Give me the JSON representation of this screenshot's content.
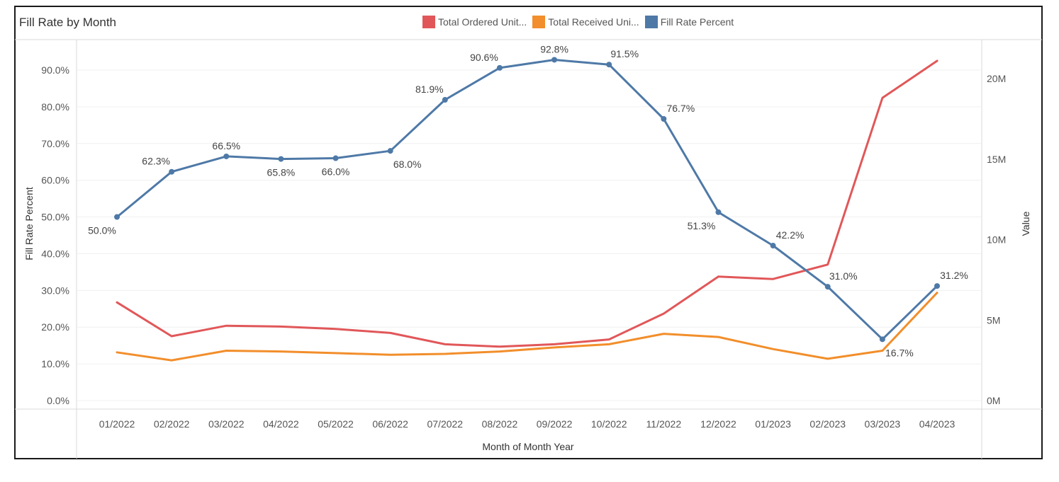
{
  "title": "Fill Rate by Month",
  "legend": [
    {
      "label": "Total Ordered Unit...",
      "color": "#e15759"
    },
    {
      "label": "Total Received Uni...",
      "color": "#f28e2b"
    },
    {
      "label": "Fill Rate Percent",
      "color": "#4e79a7"
    }
  ],
  "chart_data": {
    "type": "line",
    "title": "Fill Rate by Month",
    "xlabel": "Month of Month Year",
    "ylabel_left": "Fill Rate Percent",
    "ylabel_right": "Value",
    "categories": [
      "01/2022",
      "02/2022",
      "03/2022",
      "04/2022",
      "05/2022",
      "06/2022",
      "07/2022",
      "08/2022",
      "09/2022",
      "10/2022",
      "11/2022",
      "12/2022",
      "01/2023",
      "02/2023",
      "03/2023",
      "04/2023"
    ],
    "left_axis": {
      "min": 0,
      "max": 95,
      "ticks": [
        "0.0%",
        "10.0%",
        "20.0%",
        "30.0%",
        "40.0%",
        "50.0%",
        "60.0%",
        "70.0%",
        "80.0%",
        "90.0%"
      ],
      "tick_values": [
        0,
        10,
        20,
        30,
        40,
        50,
        60,
        70,
        80,
        90
      ]
    },
    "right_axis": {
      "min": 0,
      "max": 22,
      "ticks": [
        "0M",
        "5M",
        "10M",
        "15M",
        "20M"
      ],
      "tick_values": [
        0,
        5,
        10,
        15,
        20
      ],
      "unit": "M"
    },
    "series": [
      {
        "name": "Total Ordered Unit...",
        "axis": "right",
        "color": "#e15759",
        "values": [
          6.1,
          4.0,
          4.65,
          4.6,
          4.45,
          4.2,
          3.5,
          3.35,
          3.5,
          3.8,
          5.4,
          7.7,
          7.55,
          8.45,
          18.8,
          21.1
        ]
      },
      {
        "name": "Total Received Uni...",
        "axis": "right",
        "color": "#f28e2b",
        "values": [
          3.0,
          2.5,
          3.1,
          3.05,
          2.95,
          2.85,
          2.9,
          3.05,
          3.3,
          3.5,
          4.15,
          3.95,
          3.2,
          2.6,
          3.1,
          6.7
        ]
      },
      {
        "name": "Fill Rate Percent",
        "axis": "left",
        "color": "#4e79a7",
        "markers": true,
        "values": [
          50.0,
          62.3,
          66.5,
          65.8,
          66.0,
          68.0,
          81.9,
          90.6,
          92.8,
          91.5,
          76.7,
          51.3,
          42.2,
          31.0,
          16.7,
          31.2
        ],
        "labels": [
          "50.0%",
          "62.3%",
          "66.5%",
          "65.8%",
          "66.0%",
          "68.0%",
          "81.9%",
          "90.6%",
          "92.8%",
          "91.5%",
          "76.7%",
          "51.3%",
          "42.2%",
          "31.0%",
          "16.7%",
          "31.2%"
        ]
      }
    ]
  }
}
